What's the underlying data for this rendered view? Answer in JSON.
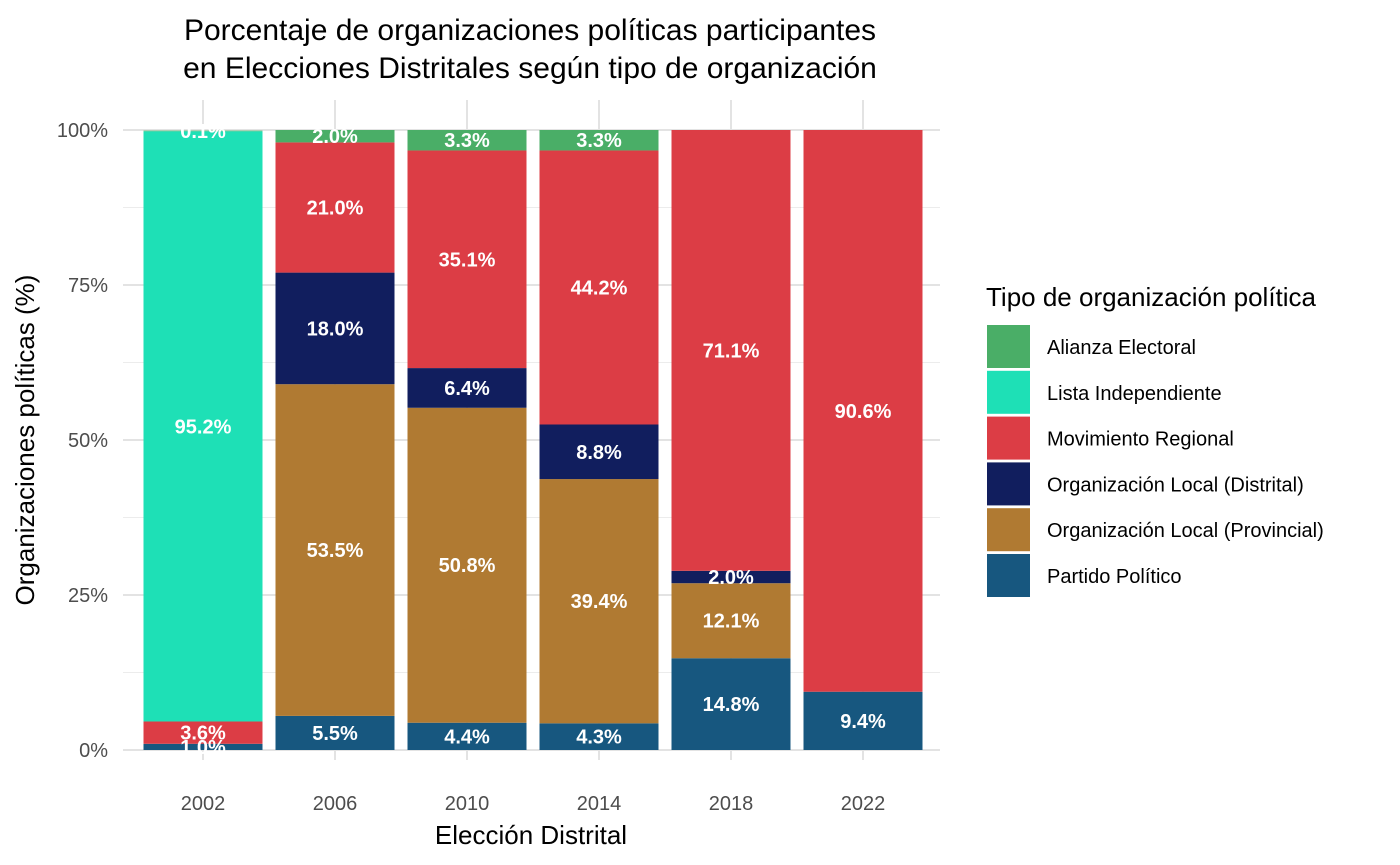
{
  "chart_data": {
    "type": "bar",
    "stacked": true,
    "title": [
      "Porcentaje de organizaciones políticas participantes",
      "en Elecciones Distritales según tipo de organización"
    ],
    "xlabel": "Elección Distrital",
    "ylabel": "Organizaciones políticas (%)",
    "ylim": [
      0,
      100
    ],
    "yticks": [
      "0%",
      "25%",
      "50%",
      "75%",
      "100%"
    ],
    "grid": true,
    "legend_title": "Tipo de organización política",
    "legend_position": "right",
    "categories": [
      "2002",
      "2006",
      "2010",
      "2014",
      "2018",
      "2022"
    ],
    "series": [
      {
        "name": "Partido Político",
        "color": "#17577f",
        "values": [
          1.0,
          5.5,
          4.4,
          4.3,
          14.8,
          9.4
        ],
        "labels": [
          "1.0%",
          "5.5%",
          "4.4%",
          "4.3%",
          "14.8%",
          "9.4%"
        ]
      },
      {
        "name": "Organización Local (Provincial)",
        "color": "#b07a32",
        "values": [
          0,
          53.5,
          50.8,
          39.4,
          12.1,
          0
        ],
        "labels": [
          "",
          "53.5%",
          "50.8%",
          "39.4%",
          "12.1%",
          ""
        ]
      },
      {
        "name": "Organización Local (Distrital)",
        "color": "#111e5e",
        "values": [
          0,
          18.0,
          6.4,
          8.8,
          2.0,
          0
        ],
        "labels": [
          "",
          "18.0%",
          "6.4%",
          "8.8%",
          "2.0%",
          ""
        ]
      },
      {
        "name": "Movimiento Regional",
        "color": "#dc3d45",
        "values": [
          3.6,
          21.0,
          35.1,
          44.2,
          71.1,
          90.6
        ],
        "labels": [
          "3.6%",
          "21.0%",
          "35.1%",
          "44.2%",
          "71.1%",
          "90.6%"
        ]
      },
      {
        "name": "Lista Independiente",
        "color": "#1ee0b6",
        "values": [
          95.2,
          0,
          0,
          0,
          0,
          0
        ],
        "labels": [
          "95.2%",
          "",
          "",
          "",
          "",
          ""
        ]
      },
      {
        "name": "Alianza Electoral",
        "color": "#4aae67",
        "values": [
          0.1,
          2.0,
          3.3,
          3.3,
          0,
          0
        ],
        "labels": [
          "0.1%",
          "2.0%",
          "3.3%",
          "3.3%",
          "",
          ""
        ]
      }
    ],
    "legend_order": [
      "Alianza Electoral",
      "Lista Independiente",
      "Movimiento Regional",
      "Organización Local (Distrital)",
      "Organización Local (Provincial)",
      "Partido Político"
    ]
  }
}
